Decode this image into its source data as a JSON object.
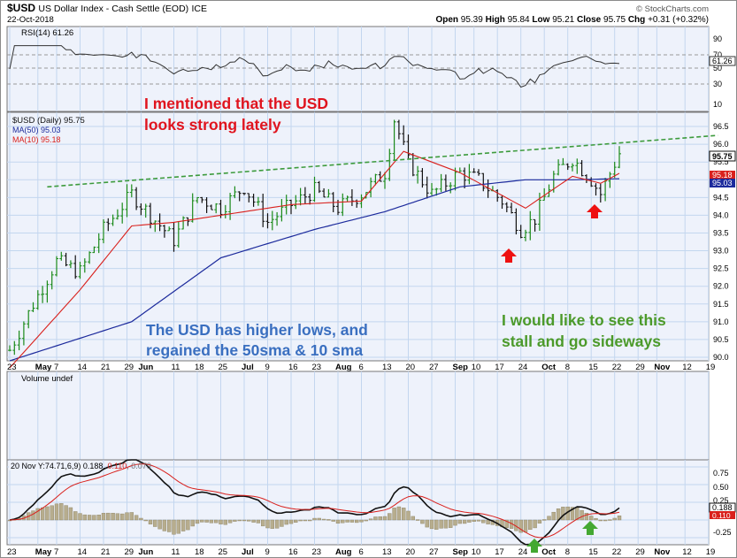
{
  "header": {
    "symbol": "$USD",
    "name": "US Dollar Index - Cash Settle (EOD)",
    "exchange": "ICE",
    "date": "22-Oct-2018",
    "open_label": "Open",
    "open": "95.39",
    "high_label": "High",
    "high": "95.84",
    "low_label": "Low",
    "low": "95.21",
    "close_label": "Close",
    "close": "95.75",
    "chg_label": "Chg",
    "chg": "+0.31 (+0.32%)",
    "watermark": "© StockCharts.com"
  },
  "colors": {
    "panel_bg": "#eef2fb",
    "grid": "#c3d6ef",
    "price": "#111111",
    "ma50": "#1c2a9c",
    "ma10": "#d9201c",
    "trendline": "#3d9b3d",
    "annotation_red": "#e0141e",
    "annotation_blue": "#3a6fc0",
    "annotation_green": "#4c9a2a",
    "arrow_red": "#ee1111",
    "arrow_green": "#44a832",
    "close_tag": "#ffffff",
    "ma50_tag": "#1c2a9c",
    "ma10_tag": "#d9201c"
  },
  "x_axis": {
    "labels": [
      {
        "t": "23",
        "i": 0
      },
      {
        "t": "May",
        "i": 6
      },
      {
        "t": "7",
        "i": 10
      },
      {
        "t": "14",
        "i": 15
      },
      {
        "t": "21",
        "i": 20
      },
      {
        "t": "29",
        "i": 25
      },
      {
        "t": "Jun",
        "i": 28
      },
      {
        "t": "11",
        "i": 35
      },
      {
        "t": "18",
        "i": 40
      },
      {
        "t": "25",
        "i": 45
      },
      {
        "t": "Jul",
        "i": 50
      },
      {
        "t": "9",
        "i": 55
      },
      {
        "t": "16",
        "i": 60
      },
      {
        "t": "23",
        "i": 65
      },
      {
        "t": "Aug",
        "i": 70
      },
      {
        "t": "6",
        "i": 75
      },
      {
        "t": "13",
        "i": 80
      },
      {
        "t": "20",
        "i": 85
      },
      {
        "t": "27",
        "i": 90
      },
      {
        "t": "Sep",
        "i": 95
      },
      {
        "t": "10",
        "i": 99
      },
      {
        "t": "17",
        "i": 104
      },
      {
        "t": "24",
        "i": 109
      },
      {
        "t": "Oct",
        "i": 114
      },
      {
        "t": "8",
        "i": 119
      },
      {
        "t": "15",
        "i": 124
      },
      {
        "t": "22",
        "i": 129
      },
      {
        "t": "29",
        "i": 134
      },
      {
        "t": "Nov",
        "i": 138
      },
      {
        "t": "12",
        "i": 144
      },
      {
        "t": "19",
        "i": 149
      }
    ],
    "bold": [
      "May",
      "Jun",
      "Jul",
      "Aug",
      "Sep",
      "Oct",
      "Nov"
    ]
  },
  "rsi_panel": {
    "label": "RSI(14) 61.26",
    "ticks": [
      "90",
      "70",
      "50",
      "30",
      "10"
    ],
    "tag": "61.26"
  },
  "price_panel": {
    "legend": [
      {
        "text": "$USD (Daily) 95.75",
        "color": "#111111"
      },
      {
        "text": "MA(50) 95.03",
        "color": "#1c2a9c"
      },
      {
        "text": "MA(10) 95.18",
        "color": "#d9201c"
      }
    ],
    "ticks": [
      "96.5",
      "96.0",
      "95.5",
      "95.0",
      "94.5",
      "94.0",
      "93.5",
      "93.0",
      "92.5",
      "92.0",
      "91.5",
      "91.0",
      "90.5",
      "90.0"
    ],
    "tags": {
      "close": "95.75",
      "ma10": "95.18",
      "ma50": "95.03"
    }
  },
  "volume_panel": {
    "label": "Volume undef"
  },
  "macd_panel": {
    "label": "20 Nov Y:74.71",
    "label_tail": ",6,9) 0.188, ",
    "signal_val": "0.110",
    "hist_val": ", 0.079",
    "ticks": [
      "0.75",
      "0.50",
      "0.25",
      "0.00",
      "-0.25"
    ],
    "tags": {
      "macd": "0.188",
      "signal": "0.110"
    }
  },
  "annotations": {
    "red_line1": "I mentioned that the USD",
    "red_line2": "looks strong lately",
    "blue_line1": "The USD has higher lows, and",
    "blue_line2": "regained the 50sma & 10 sma",
    "green_line1": "I would like to see this",
    "green_line2": "stall and go sideways"
  },
  "chart_data": {
    "type": "line",
    "title": "$USD US Dollar Index - Cash Settle (EOD) ICE",
    "y_range": [
      89.9,
      96.9
    ],
    "x_range": [
      "2018-04-23",
      "2018-11-20"
    ],
    "close_points": [
      {
        "date": "2018-04-23",
        "value": 90.2
      },
      {
        "date": "2018-04-30",
        "value": 91.5
      },
      {
        "date": "2018-05-07",
        "value": 92.7
      },
      {
        "date": "2018-05-14",
        "value": 92.4
      },
      {
        "date": "2018-05-21",
        "value": 93.6
      },
      {
        "date": "2018-05-29",
        "value": 94.6
      },
      {
        "date": "2018-06-04",
        "value": 94.0
      },
      {
        "date": "2018-06-11",
        "value": 93.3
      },
      {
        "date": "2018-06-18",
        "value": 94.5
      },
      {
        "date": "2018-06-25",
        "value": 94.2
      },
      {
        "date": "2018-07-02",
        "value": 94.8
      },
      {
        "date": "2018-07-09",
        "value": 93.8
      },
      {
        "date": "2018-07-16",
        "value": 94.3
      },
      {
        "date": "2018-07-23",
        "value": 94.7
      },
      {
        "date": "2018-07-30",
        "value": 94.2
      },
      {
        "date": "2018-08-06",
        "value": 94.6
      },
      {
        "date": "2018-08-13",
        "value": 95.2
      },
      {
        "date": "2018-08-15",
        "value": 96.7
      },
      {
        "date": "2018-08-20",
        "value": 95.5
      },
      {
        "date": "2018-08-27",
        "value": 94.6
      },
      {
        "date": "2018-09-04",
        "value": 95.2
      },
      {
        "date": "2018-09-10",
        "value": 95.0
      },
      {
        "date": "2018-09-17",
        "value": 94.4
      },
      {
        "date": "2018-09-21",
        "value": 93.6
      },
      {
        "date": "2018-09-26",
        "value": 93.9
      },
      {
        "date": "2018-10-02",
        "value": 95.1
      },
      {
        "date": "2018-10-08",
        "value": 95.6
      },
      {
        "date": "2018-10-12",
        "value": 95.0
      },
      {
        "date": "2018-10-16",
        "value": 94.6
      },
      {
        "date": "2018-10-22",
        "value": 95.75
      }
    ],
    "ma50_points": [
      {
        "date": "2018-04-23",
        "value": 89.9
      },
      {
        "date": "2018-05-29",
        "value": 91.0
      },
      {
        "date": "2018-06-25",
        "value": 92.8
      },
      {
        "date": "2018-07-23",
        "value": 93.6
      },
      {
        "date": "2018-08-13",
        "value": 94.1
      },
      {
        "date": "2018-09-04",
        "value": 94.8
      },
      {
        "date": "2018-09-24",
        "value": 95.0
      },
      {
        "date": "2018-10-08",
        "value": 95.0
      },
      {
        "date": "2018-10-22",
        "value": 95.03
      }
    ],
    "ma10_points": [
      {
        "date": "2018-04-23",
        "value": 89.7
      },
      {
        "date": "2018-05-14",
        "value": 91.9
      },
      {
        "date": "2018-05-29",
        "value": 93.7
      },
      {
        "date": "2018-06-11",
        "value": 93.8
      },
      {
        "date": "2018-06-25",
        "value": 94.0
      },
      {
        "date": "2018-07-16",
        "value": 94.3
      },
      {
        "date": "2018-08-06",
        "value": 94.4
      },
      {
        "date": "2018-08-17",
        "value": 95.8
      },
      {
        "date": "2018-09-04",
        "value": 95.2
      },
      {
        "date": "2018-09-24",
        "value": 94.2
      },
      {
        "date": "2018-10-08",
        "value": 95.1
      },
      {
        "date": "2018-10-16",
        "value": 94.9
      },
      {
        "date": "2018-10-22",
        "value": 95.18
      }
    ],
    "trendline": [
      {
        "date": "2018-05-03",
        "value": 94.8
      },
      {
        "date": "2018-11-20",
        "value": 96.25
      }
    ],
    "rsi_range": [
      0,
      100
    ],
    "macd_range": [
      -0.35,
      0.85
    ]
  }
}
